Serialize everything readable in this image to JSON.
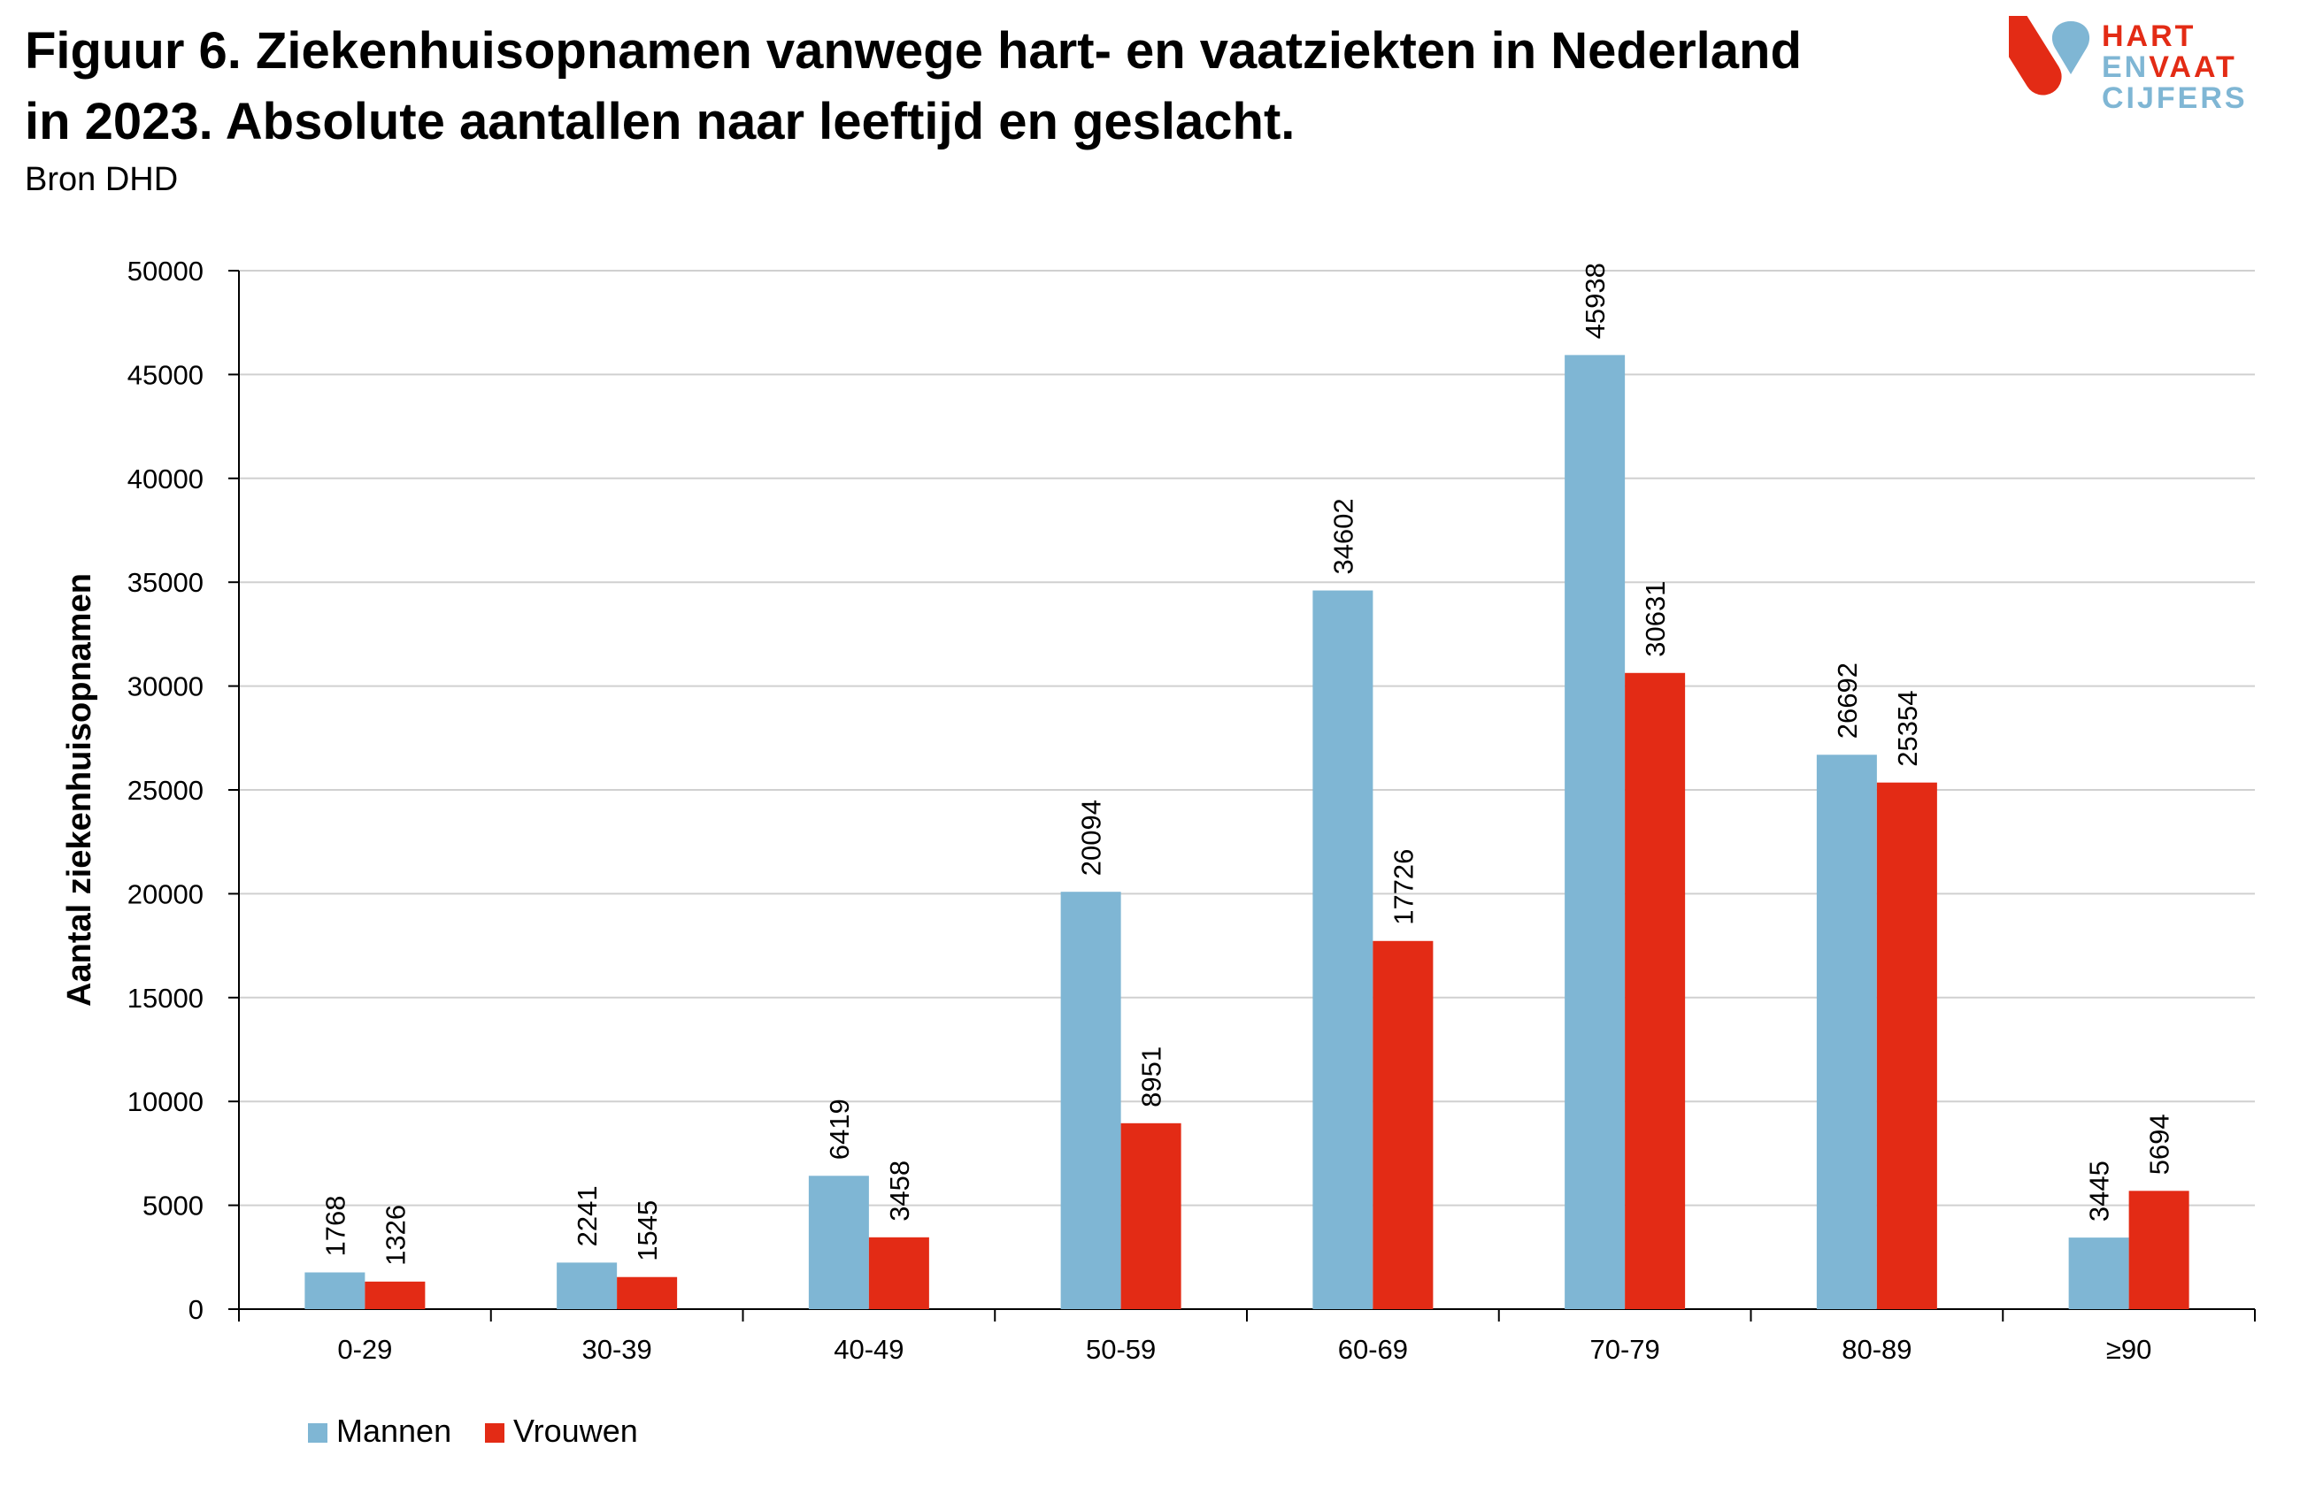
{
  "header": {
    "title_line1": "Figuur 6. Ziekenhuisopnamen vanwege hart- en vaatziekten in Nederland",
    "title_line2": "in 2023. Absolute aantallen naar leeftijd en geslacht.",
    "source": "Bron DHD"
  },
  "logo": {
    "line1": "HART",
    "line2_a": "EN",
    "line2_b": "VAAT",
    "line3": "CIJFERS"
  },
  "colors": {
    "mannen": "#7fb6d4",
    "vrouwen": "#e32b15",
    "grid": "#d0d0d0",
    "axis": "#000000"
  },
  "chart_data": {
    "type": "bar",
    "title": "Figuur 6. Ziekenhuisopnamen vanwege hart- en vaatziekten in Nederland in 2023. Absolute aantallen naar leeftijd en geslacht.",
    "ylabel": "Aantal ziekenhuisopnamen",
    "xlabel": "",
    "ylim": [
      0,
      50000
    ],
    "yticks": [
      0,
      5000,
      10000,
      15000,
      20000,
      25000,
      30000,
      35000,
      40000,
      45000,
      50000
    ],
    "categories": [
      "0-29",
      "30-39",
      "40-49",
      "50-59",
      "60-69",
      "70-79",
      "80-89",
      "≥90"
    ],
    "series": [
      {
        "name": "Mannen",
        "values": [
          1768,
          2241,
          6419,
          20094,
          34602,
          45938,
          26692,
          3445
        ]
      },
      {
        "name": "Vrouwen",
        "values": [
          1326,
          1545,
          3458,
          8951,
          17726,
          30631,
          25354,
          5694
        ]
      }
    ],
    "grid": true,
    "legend": "bottom-left"
  }
}
